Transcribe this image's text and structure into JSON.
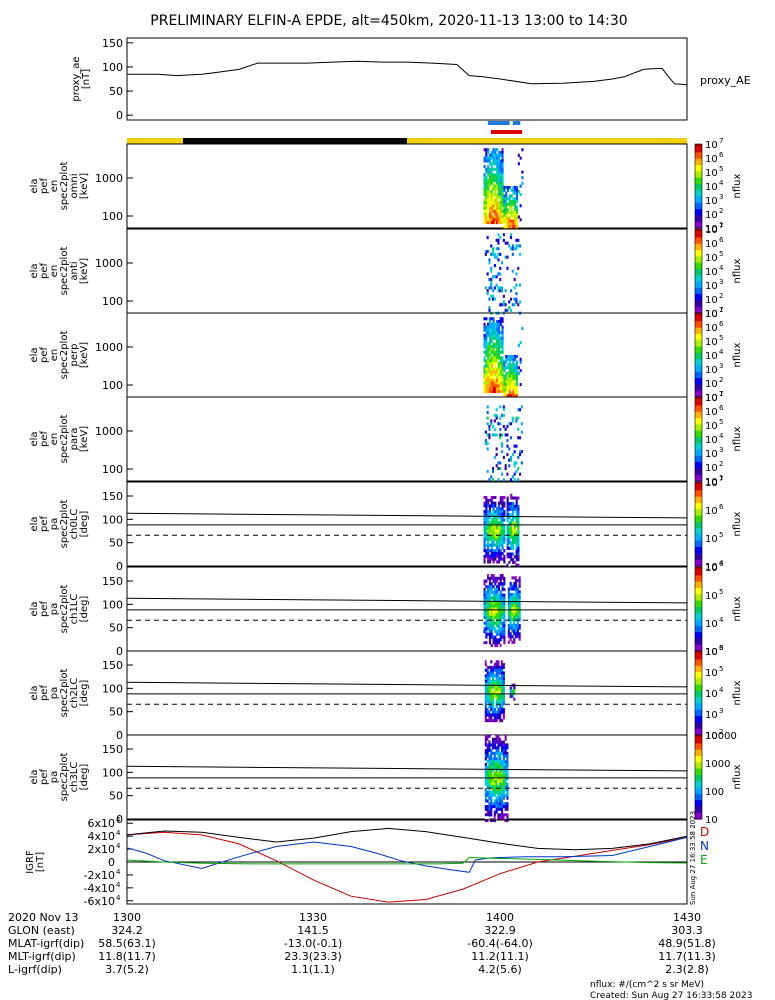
{
  "title": "PRELIMINARY ELFIN-A EPDE, alt=450km, 2020-11-13 13:00 to 14:30",
  "colors": {
    "yellow": "#f4d000",
    "black": "#000000",
    "blue": "#1f7ae0",
    "red": "#e00000",
    "D": "#cc0000",
    "N": "#0033cc",
    "E": "#00aa00"
  },
  "chart_data": [
    {
      "type": "line",
      "name": "proxy_ae",
      "ylabel_lines": [
        "proxy_ae",
        "[nT]"
      ],
      "series_label": "proxy_AE",
      "xlim": [
        0,
        90
      ],
      "ylim": [
        -10,
        160
      ],
      "yticks": [
        "0",
        "50",
        "100",
        "150"
      ],
      "ytick_values": [
        0,
        50,
        100,
        150
      ],
      "x": [
        0,
        5,
        8,
        12,
        14,
        18,
        21,
        25,
        29,
        33,
        37,
        41,
        45,
        49,
        53,
        55,
        57,
        60,
        65,
        70,
        75,
        78,
        80,
        83,
        84,
        86,
        87,
        88,
        90
      ],
      "values": [
        85,
        85,
        82,
        85,
        88,
        95,
        108,
        108,
        108,
        110,
        112,
        110,
        110,
        108,
        105,
        82,
        80,
        75,
        65,
        66,
        70,
        75,
        80,
        95,
        96,
        97,
        80,
        65,
        63
      ]
    },
    {
      "type": "timeline-bars",
      "rows": [
        {
          "segments": [
            {
              "start": 58.0,
              "end": 61.5,
              "color": "#1f7ae0"
            },
            {
              "start": 62.0,
              "end": 63.2,
              "color": "#1f7ae0"
            }
          ]
        },
        {
          "segments": [
            {
              "start": 58.5,
              "end": 63.5,
              "color": "#e00000"
            }
          ]
        },
        {
          "segments": [
            {
              "start": 0,
              "end": 9,
              "color": "#f4d000"
            },
            {
              "start": 9,
              "end": 45,
              "color": "#000000"
            },
            {
              "start": 45,
              "end": 90,
              "color": "#f4d000"
            }
          ]
        }
      ]
    },
    {
      "type": "heatmap",
      "log": true,
      "ylabel_lines": [
        "ela",
        "pef",
        "en",
        "spec2plot",
        "omni",
        "[keV]"
      ],
      "yticks": [
        "100",
        "1000"
      ],
      "zlabel": "nflux",
      "cticks": [
        "10",
        "10",
        "10",
        "10",
        "10",
        "10",
        "10"
      ],
      "cexp": [
        "1",
        "2",
        "3",
        "4",
        "5",
        "6",
        "7"
      ],
      "blobs": [
        {
          "x0": 57.3,
          "x1": 60.2,
          "ylo": 0.05,
          "yhi": 0.95,
          "kind": "core"
        },
        {
          "x0": 60.5,
          "x1": 62.7,
          "ylo": 0.02,
          "yhi": 0.5,
          "kind": "core"
        },
        {
          "x0": 62.8,
          "x1": 63.5,
          "ylo": 0.1,
          "yhi": 0.95,
          "kind": "sparse"
        }
      ]
    },
    {
      "type": "heatmap",
      "log": true,
      "ylabel_lines": [
        "ela",
        "pef",
        "en",
        "spec2plot",
        "anti",
        "[keV]"
      ],
      "yticks": [
        "100",
        "1000"
      ],
      "zlabel": "nflux",
      "cticks": [
        "10",
        "10",
        "10",
        "10",
        "10",
        "10",
        "10"
      ],
      "cexp": [
        "1",
        "2",
        "3",
        "4",
        "5",
        "6",
        "7"
      ],
      "blobs": [
        {
          "x0": 57.5,
          "x1": 63.0,
          "ylo": 0.0,
          "yhi": 0.95,
          "kind": "sparse"
        }
      ]
    },
    {
      "type": "heatmap",
      "log": true,
      "ylabel_lines": [
        "ela",
        "pef",
        "en",
        "spec2plot",
        "perp",
        "[keV]"
      ],
      "yticks": [
        "100",
        "1000"
      ],
      "zlabel": "nflux",
      "cticks": [
        "10",
        "10",
        "10",
        "10",
        "10",
        "10",
        "10"
      ],
      "cexp": [
        "1",
        "2",
        "3",
        "4",
        "5",
        "6",
        "7"
      ],
      "blobs": [
        {
          "x0": 57.3,
          "x1": 60.2,
          "ylo": 0.05,
          "yhi": 0.95,
          "kind": "core"
        },
        {
          "x0": 60.5,
          "x1": 62.7,
          "ylo": 0.02,
          "yhi": 0.5,
          "kind": "core"
        },
        {
          "x0": 62.8,
          "x1": 63.5,
          "ylo": 0.1,
          "yhi": 0.9,
          "kind": "sparse"
        }
      ]
    },
    {
      "type": "heatmap",
      "log": true,
      "ylabel_lines": [
        "ela",
        "pef",
        "en",
        "spec2plot",
        "para",
        "[keV]"
      ],
      "yticks": [
        "100",
        "1000"
      ],
      "zlabel": "nflux",
      "cticks": [
        "10",
        "10",
        "10",
        "10",
        "10",
        "10",
        "10"
      ],
      "cexp": [
        "1",
        "2",
        "3",
        "4",
        "5",
        "6",
        "7"
      ],
      "blobs": [
        {
          "x0": 57.5,
          "x1": 63.3,
          "ylo": 0.0,
          "yhi": 0.9,
          "kind": "sparse"
        }
      ]
    },
    {
      "type": "heatmap",
      "ylabel_lines": [
        "ela",
        "pef",
        "pa",
        "spec2plot",
        "ch0LC",
        "[deg]"
      ],
      "yticks": [
        "0",
        "50",
        "100",
        "150"
      ],
      "ytick_values": [
        0,
        50,
        100,
        150
      ],
      "ylim": [
        0,
        180
      ],
      "zlabel": "nflux",
      "cticks": [
        "10",
        "10",
        "10",
        "10"
      ],
      "cexp": [
        "4",
        "5",
        "6",
        "7"
      ],
      "lines": {
        "upper": [
          [
            0,
            113
          ],
          [
            90,
            103
          ]
        ],
        "lower": [
          [
            0,
            88
          ],
          [
            90,
            88
          ]
        ],
        "dashed": [
          [
            0,
            66
          ],
          [
            90,
            66
          ]
        ]
      },
      "blobs": [
        {
          "x0": 57.3,
          "x1": 60.5,
          "ylo": 10,
          "yhi": 150,
          "kind": "pa"
        },
        {
          "x0": 61.0,
          "x1": 63.0,
          "ylo": 5,
          "yhi": 155,
          "kind": "pa"
        }
      ]
    },
    {
      "type": "heatmap",
      "ylabel_lines": [
        "ela",
        "pef",
        "pa",
        "spec2plot",
        "ch1LC",
        "[deg]"
      ],
      "yticks": [
        "0",
        "50",
        "100",
        "150"
      ],
      "ytick_values": [
        0,
        50,
        100,
        150
      ],
      "ylim": [
        0,
        180
      ],
      "zlabel": "nflux",
      "cticks": [
        "10",
        "10",
        "10",
        "10"
      ],
      "cexp": [
        "3",
        "4",
        "5",
        "6"
      ],
      "lines": {
        "upper": [
          [
            0,
            113
          ],
          [
            90,
            103
          ]
        ],
        "lower": [
          [
            0,
            88
          ],
          [
            90,
            88
          ]
        ],
        "dashed": [
          [
            0,
            66
          ],
          [
            90,
            66
          ]
        ]
      },
      "blobs": [
        {
          "x0": 57.3,
          "x1": 60.5,
          "ylo": 10,
          "yhi": 165,
          "kind": "pa"
        },
        {
          "x0": 61.2,
          "x1": 63.0,
          "ylo": 20,
          "yhi": 160,
          "kind": "pa"
        }
      ]
    },
    {
      "type": "heatmap",
      "ylabel_lines": [
        "ela",
        "pef",
        "pa",
        "spec2plot",
        "ch2LC",
        "[deg]"
      ],
      "yticks": [
        "0",
        "50",
        "100",
        "150"
      ],
      "ytick_values": [
        0,
        50,
        100,
        150
      ],
      "ylim": [
        0,
        180
      ],
      "zlabel": "nflux",
      "cticks": [
        "10",
        "10",
        "10",
        "10",
        "10"
      ],
      "cexp": [
        "2",
        "3",
        "4",
        "5",
        "6"
      ],
      "lines": {
        "upper": [
          [
            0,
            113
          ],
          [
            90,
            103
          ]
        ],
        "lower": [
          [
            0,
            88
          ],
          [
            90,
            88
          ]
        ],
        "dashed": [
          [
            0,
            66
          ],
          [
            90,
            66
          ]
        ]
      },
      "blobs": [
        {
          "x0": 57.5,
          "x1": 60.5,
          "ylo": 30,
          "yhi": 160,
          "kind": "pa"
        },
        {
          "x0": 61.5,
          "x1": 62.3,
          "ylo": 80,
          "yhi": 110,
          "kind": "pa"
        }
      ]
    },
    {
      "type": "heatmap",
      "ylabel_lines": [
        "ela",
        "pef",
        "pa",
        "spec2plot",
        "ch3LC",
        "[deg]"
      ],
      "yticks": [
        "0",
        "50",
        "100",
        "150"
      ],
      "ytick_values": [
        0,
        50,
        100,
        150
      ],
      "ylim": [
        0,
        180
      ],
      "zlabel": "nflux",
      "cticks": [
        "10",
        "100",
        "1000",
        "10000"
      ],
      "lines": {
        "upper": [
          [
            0,
            113
          ],
          [
            90,
            103
          ]
        ],
        "lower": [
          [
            0,
            88
          ],
          [
            90,
            88
          ]
        ],
        "dashed": [
          [
            0,
            66
          ],
          [
            90,
            66
          ]
        ]
      },
      "blobs": [
        {
          "x0": 57.5,
          "x1": 61.0,
          "ylo": 0,
          "yhi": 180,
          "kind": "pa"
        }
      ]
    },
    {
      "type": "line",
      "name": "IGRF",
      "ylabel_lines": [
        "IGRF",
        "[nT]"
      ],
      "xlim": [
        0,
        90
      ],
      "ylim": [
        -65000,
        65000
      ],
      "yticks": [
        "-6x10",
        "-4x10",
        "-2x10",
        "0",
        "2x10",
        "4x10",
        "6x10"
      ],
      "ytick_values": [
        -60000,
        -40000,
        -20000,
        0,
        20000,
        40000,
        60000
      ],
      "side_label": "Sun Aug 27 16:33:58 2023",
      "legend": [
        {
          "name": "D",
          "color": "#cc0000"
        },
        {
          "name": "N",
          "color": "#0033cc"
        },
        {
          "name": "E",
          "color": "#00aa00"
        }
      ],
      "series": [
        {
          "name": "D",
          "color": "#cc0000",
          "x": [
            0,
            6,
            12,
            18,
            24,
            30,
            36,
            42,
            48,
            54,
            60,
            66,
            72,
            78,
            84,
            90
          ],
          "values": [
            42000,
            46000,
            42000,
            28000,
            2000,
            -28000,
            -53000,
            -62000,
            -58000,
            -42000,
            -18000,
            0,
            9000,
            18000,
            27000,
            38000
          ]
        },
        {
          "name": "N",
          "color": "#0033cc",
          "x": [
            0,
            3,
            6,
            12,
            18,
            24,
            30,
            36,
            40,
            44,
            48,
            52,
            55,
            56,
            58,
            60,
            64,
            70,
            78,
            84,
            90
          ],
          "values": [
            22000,
            14000,
            2000,
            -10000,
            8000,
            24000,
            31000,
            24000,
            14000,
            2000,
            -6000,
            -12000,
            -16000,
            3000,
            6000,
            7000,
            8000,
            8000,
            10000,
            24000,
            38000
          ]
        },
        {
          "name": "E",
          "color": "#00aa00",
          "x": [
            0,
            6,
            12,
            20,
            30,
            40,
            50,
            54,
            55,
            58,
            66,
            76,
            84,
            90
          ],
          "values": [
            3000,
            0,
            -2000,
            -3000,
            -3000,
            -3000,
            -3000,
            -2000,
            7000,
            6000,
            4000,
            1000,
            -1000,
            -1500
          ]
        },
        {
          "name": "total",
          "color": "#000000",
          "x": [
            0,
            6,
            12,
            18,
            24,
            30,
            36,
            42,
            48,
            54,
            60,
            66,
            72,
            78,
            84,
            90
          ],
          "values": [
            42000,
            48000,
            46000,
            38000,
            31000,
            37000,
            47000,
            52000,
            47000,
            38000,
            29000,
            21000,
            19000,
            21000,
            28000,
            40000
          ]
        }
      ]
    },
    {
      "type": "table",
      "rows": [
        {
          "label": "2020 Nov 13",
          "values": [
            "1300",
            "1330",
            "1400",
            "1430"
          ]
        },
        {
          "label": "GLON (east)",
          "values": [
            "324.2",
            "141.5",
            "322.9",
            "303.3"
          ]
        },
        {
          "label": "MLAT-igrf(dip)",
          "values": [
            "58.5(63.1)",
            "-13.0(-0.1)",
            "-60.4(-64.0)",
            "48.9(51.8)"
          ]
        },
        {
          "label": "MLT-igrf(dip)",
          "values": [
            "11.8(11.7)",
            "23.3(23.3)",
            "11.2(11.1)",
            "11.7(11.3)"
          ]
        },
        {
          "label": "L-igrf(dip)",
          "values": [
            "3.7(5.2)",
            "1.1(1.1)",
            "4.2(5.6)",
            "2.3(2.8)"
          ]
        }
      ]
    }
  ],
  "footer": {
    "units": "nflux: #/(cm^2 s sr MeV)",
    "created": "Created: Sun Aug 27 16:33:58 2023"
  }
}
